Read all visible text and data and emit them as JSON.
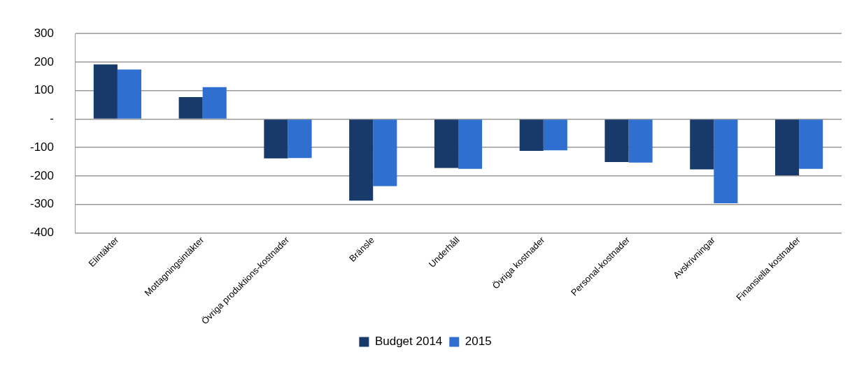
{
  "chart_data": {
    "type": "bar",
    "categories": [
      "Elintäkter",
      "Mottagningsintäkter",
      "Övriga produktions-kostnader",
      "Bränsle",
      "Underhåll",
      "Övriga kostnader",
      "Personal-kostnader",
      "Avskrivningar",
      "Finansiella kostnader"
    ],
    "series": [
      {
        "name": "Budget 2014",
        "color": "#173a6b",
        "values": [
          192,
          77,
          -138,
          -287,
          -172,
          -112,
          -151,
          -177,
          -198
        ]
      },
      {
        "name": "2015",
        "color": "#2e6fd0",
        "values": [
          174,
          112,
          -137,
          -236,
          -175,
          -110,
          -153,
          -296,
          -175
        ]
      }
    ],
    "ylim": [
      -400,
      300
    ],
    "yticks": [
      -400,
      -300,
      -200,
      -100,
      {
        "value": 0,
        "label": "-"
      },
      100,
      200,
      300
    ],
    "grid": "y",
    "legend": "bottom"
  }
}
